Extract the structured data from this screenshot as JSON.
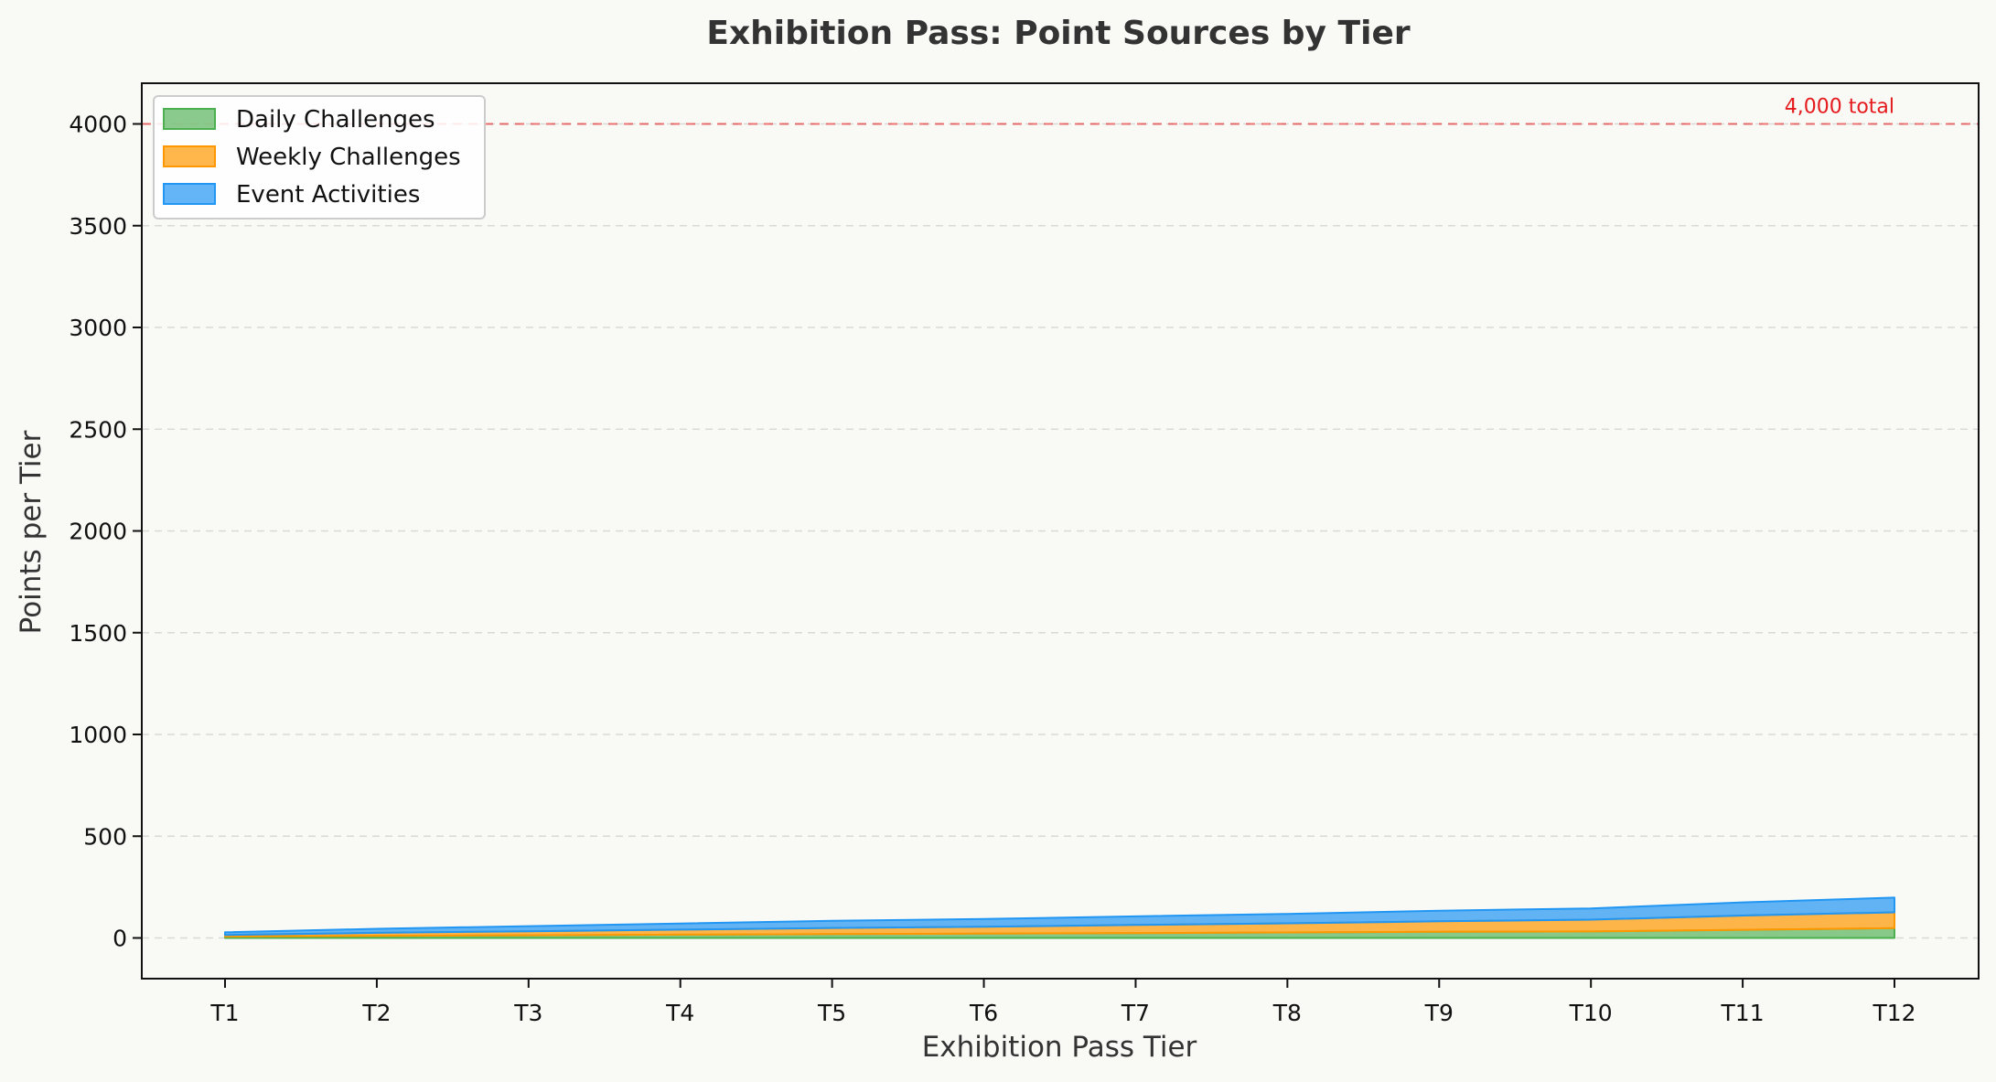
{
  "chart_data": {
    "type": "area",
    "stacked": true,
    "title": "Exhibition Pass: Point Sources by Tier",
    "xlabel": "Exhibition Pass Tier",
    "ylabel": "Points per Tier",
    "categories": [
      "T1",
      "T2",
      "T3",
      "T4",
      "T5",
      "T6",
      "T7",
      "T8",
      "T9",
      "T10",
      "T11",
      "T12"
    ],
    "ylim": [
      -200,
      4200
    ],
    "yticks": [
      0,
      500,
      1000,
      1500,
      2000,
      2500,
      3000,
      3500,
      4000
    ],
    "grid": true,
    "legend_position": "top-left",
    "series": [
      {
        "name": "Daily Challenges",
        "color": "#4caf50",
        "values": [
          7,
          10,
          13,
          16,
          19,
          21,
          24,
          27,
          30,
          32,
          40,
          48
        ]
      },
      {
        "name": "Weekly Challenges",
        "color": "#ff9800",
        "values": [
          8,
          15,
          20,
          25,
          30,
          34,
          40,
          45,
          52,
          58,
          70,
          78
        ]
      },
      {
        "name": "Event Activities",
        "color": "#2196f3",
        "values": [
          13,
          20,
          25,
          30,
          35,
          38,
          42,
          46,
          52,
          55,
          65,
          72
        ]
      }
    ],
    "reference_line": {
      "value": 4000,
      "label": "4,000 total",
      "color": "#e41a1c"
    }
  }
}
